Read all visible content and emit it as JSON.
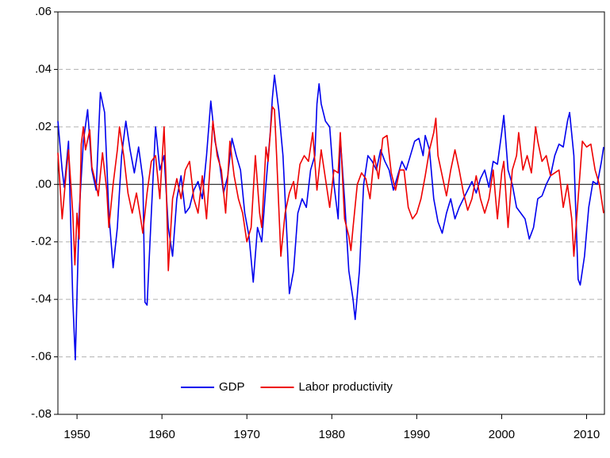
{
  "chart_data": {
    "type": "line",
    "xlim": [
      1947.75,
      2012.1
    ],
    "xticks": [
      1950,
      1960,
      1970,
      1980,
      1990,
      2000,
      2010
    ],
    "ylim": [
      -0.08,
      0.06
    ],
    "yticks": [
      {
        "value": -0.08,
        "label": "-.08"
      },
      {
        "value": -0.06,
        "label": "-.06"
      },
      {
        "value": -0.04,
        "label": "-.04"
      },
      {
        "value": -0.02,
        "label": "-.02"
      },
      {
        "value": 0,
        "label": ".00"
      },
      {
        "value": 0.02,
        "label": ".02"
      },
      {
        "value": 0.04,
        "label": ".04"
      },
      {
        "value": 0.06,
        "label": ".06"
      }
    ],
    "grid": true,
    "legend": "bottom",
    "series": [
      {
        "name": "GDP",
        "color": "#0000ee",
        "x": [
          1947.75,
          1948.25,
          1948.5,
          1949.0,
          1949.5,
          1949.8,
          1950.25,
          1950.75,
          1951.25,
          1951.75,
          1952.25,
          1952.75,
          1953.25,
          1953.75,
          1954.25,
          1954.75,
          1955.25,
          1955.75,
          1956.25,
          1956.75,
          1957.25,
          1957.75,
          1958.0,
          1958.25,
          1958.75,
          1959.25,
          1959.75,
          1960.25,
          1960.75,
          1961.25,
          1961.75,
          1962.25,
          1962.75,
          1963.25,
          1963.75,
          1964.25,
          1964.75,
          1965.25,
          1965.75,
          1966.25,
          1966.75,
          1967.25,
          1967.75,
          1968.25,
          1968.75,
          1969.25,
          1969.75,
          1970.25,
          1970.75,
          1971.25,
          1971.75,
          1972.25,
          1972.75,
          1973.0,
          1973.25,
          1973.75,
          1974.25,
          1974.75,
          1975.0,
          1975.5,
          1976.0,
          1976.5,
          1977.0,
          1977.5,
          1978.0,
          1978.25,
          1978.5,
          1978.75,
          1979.25,
          1979.75,
          1980.25,
          1980.75,
          1981.0,
          1981.5,
          1982.0,
          1982.5,
          1982.75,
          1983.25,
          1983.75,
          1984.25,
          1984.75,
          1985.25,
          1985.75,
          1986.25,
          1986.75,
          1987.25,
          1987.75,
          1988.25,
          1988.75,
          1989.25,
          1989.75,
          1990.25,
          1990.75,
          1991.0,
          1991.5,
          1992.0,
          1992.5,
          1993.0,
          1993.5,
          1994.0,
          1994.5,
          1995.0,
          1995.5,
          1996.0,
          1996.5,
          1997.0,
          1997.5,
          1998.0,
          1998.5,
          1999.0,
          1999.5,
          2000.0,
          2000.25,
          2000.75,
          2001.25,
          2001.75,
          2002.25,
          2002.75,
          2003.25,
          2003.75,
          2004.25,
          2004.75,
          2005.25,
          2005.75,
          2006.25,
          2006.75,
          2007.25,
          2007.75,
          2008.0,
          2008.5,
          2009.0,
          2009.25,
          2009.75,
          2010.25,
          2010.75,
          2011.25,
          2011.75,
          2012.0
        ],
        "values": [
          0.022,
          0.005,
          -0.001,
          0.015,
          -0.04,
          -0.061,
          -0.01,
          0.015,
          0.026,
          0.005,
          -0.002,
          0.032,
          0.025,
          -0.01,
          -0.029,
          -0.015,
          0.01,
          0.022,
          0.012,
          0.004,
          0.013,
          0.002,
          -0.041,
          -0.042,
          -0.01,
          0.02,
          0.005,
          0.01,
          -0.015,
          -0.025,
          -0.005,
          0.003,
          -0.01,
          -0.008,
          -0.002,
          0.001,
          -0.005,
          0.01,
          0.029,
          0.015,
          0.008,
          -0.003,
          0.003,
          0.016,
          0.01,
          0.005,
          -0.01,
          -0.018,
          -0.034,
          -0.015,
          -0.02,
          0.0,
          0.018,
          0.03,
          0.038,
          0.026,
          0.01,
          -0.02,
          -0.038,
          -0.03,
          -0.01,
          -0.005,
          -0.008,
          0.005,
          0.01,
          0.028,
          0.035,
          0.028,
          0.022,
          0.02,
          0.0,
          -0.012,
          0.016,
          -0.005,
          -0.03,
          -0.04,
          -0.047,
          -0.03,
          0.0,
          0.01,
          0.008,
          0.005,
          0.012,
          0.008,
          0.005,
          -0.002,
          0.003,
          0.008,
          0.005,
          0.01,
          0.015,
          0.016,
          0.01,
          0.017,
          0.012,
          -0.005,
          -0.013,
          -0.017,
          -0.01,
          -0.005,
          -0.012,
          -0.008,
          -0.005,
          -0.002,
          0.001,
          -0.003,
          0.002,
          0.005,
          -0.001,
          0.008,
          0.007,
          0.018,
          0.024,
          0.005,
          0.0,
          -0.008,
          -0.01,
          -0.012,
          -0.019,
          -0.015,
          -0.005,
          -0.004,
          0.0,
          0.003,
          0.01,
          0.014,
          0.013,
          0.022,
          0.025,
          0.01,
          -0.033,
          -0.035,
          -0.025,
          -0.008,
          0.001,
          0.0,
          0.008,
          0.013
        ]
      },
      {
        "name": "Labor productivity",
        "color": "#ee0000",
        "x": [
          1947.75,
          1948.25,
          1948.75,
          1949.0,
          1949.5,
          1949.75,
          1950.0,
          1950.25,
          1950.5,
          1950.75,
          1951.0,
          1951.5,
          1951.75,
          1952.25,
          1952.5,
          1953.0,
          1953.5,
          1953.75,
          1954.25,
          1954.75,
          1955.0,
          1955.5,
          1956.0,
          1956.5,
          1957.0,
          1957.5,
          1957.75,
          1958.25,
          1958.75,
          1959.25,
          1959.75,
          1960.25,
          1960.5,
          1960.75,
          1961.25,
          1961.75,
          1962.25,
          1962.75,
          1963.25,
          1963.75,
          1964.25,
          1964.75,
          1965.25,
          1965.75,
          1966.0,
          1966.5,
          1967.0,
          1967.5,
          1968.0,
          1968.5,
          1969.0,
          1969.5,
          1970.0,
          1970.5,
          1971.0,
          1971.5,
          1971.75,
          1972.25,
          1972.5,
          1973.0,
          1973.25,
          1973.5,
          1974.0,
          1974.5,
          1975.0,
          1975.5,
          1975.75,
          1976.25,
          1976.75,
          1977.25,
          1977.75,
          1978.25,
          1978.75,
          1979.25,
          1979.75,
          1980.25,
          1980.75,
          1981.0,
          1981.5,
          1982.0,
          1982.25,
          1982.5,
          1983.0,
          1983.5,
          1984.0,
          1984.5,
          1985.0,
          1985.5,
          1986.0,
          1986.5,
          1987.0,
          1987.5,
          1988.0,
          1988.5,
          1989.0,
          1989.5,
          1990.0,
          1990.5,
          1991.0,
          1991.5,
          1992.0,
          1992.25,
          1992.5,
          1993.0,
          1993.5,
          1994.0,
          1994.5,
          1995.0,
          1995.5,
          1996.0,
          1996.5,
          1997.0,
          1997.5,
          1998.0,
          1998.5,
          1999.0,
          1999.5,
          2000.0,
          2000.25,
          2000.75,
          2001.25,
          2001.75,
          2002.0,
          2002.5,
          2003.0,
          2003.5,
          2004.0,
          2004.25,
          2004.75,
          2005.25,
          2005.75,
          2006.25,
          2006.75,
          2007.25,
          2007.75,
          2008.25,
          2008.5,
          2009.0,
          2009.5,
          2010.0,
          2010.5,
          2011.0,
          2011.5,
          2012.0
        ],
        "values": [
          0.011,
          -0.012,
          0.005,
          0.012,
          -0.01,
          -0.028,
          -0.01,
          -0.019,
          0.014,
          0.02,
          0.012,
          0.019,
          0.006,
          0.0,
          -0.004,
          0.011,
          -0.002,
          -0.015,
          0.0,
          0.012,
          0.02,
          0.01,
          -0.003,
          -0.01,
          -0.003,
          -0.012,
          -0.017,
          -0.003,
          0.008,
          0.01,
          -0.005,
          0.02,
          0.0,
          -0.03,
          -0.005,
          0.002,
          -0.005,
          0.005,
          0.008,
          -0.005,
          -0.01,
          0.003,
          -0.012,
          0.01,
          0.022,
          0.01,
          0.005,
          -0.01,
          0.015,
          0.003,
          -0.005,
          -0.01,
          -0.02,
          -0.015,
          0.01,
          -0.01,
          -0.015,
          0.013,
          0.008,
          0.027,
          0.026,
          0.01,
          -0.025,
          -0.01,
          -0.003,
          0.001,
          -0.005,
          0.007,
          0.01,
          0.008,
          0.018,
          -0.002,
          0.012,
          0.002,
          -0.008,
          0.005,
          0.004,
          0.018,
          -0.012,
          -0.018,
          -0.023,
          -0.015,
          0.0,
          0.004,
          0.002,
          -0.005,
          0.01,
          0.002,
          0.016,
          0.017,
          0.004,
          -0.002,
          0.005,
          0.005,
          -0.008,
          -0.012,
          -0.01,
          -0.005,
          0.003,
          0.012,
          0.018,
          0.023,
          0.01,
          0.003,
          -0.004,
          0.005,
          0.012,
          0.005,
          -0.003,
          -0.009,
          -0.005,
          0.003,
          -0.005,
          -0.01,
          -0.005,
          0.005,
          -0.012,
          0.004,
          0.008,
          -0.015,
          0.005,
          0.01,
          0.018,
          0.005,
          0.01,
          0.004,
          0.02,
          0.015,
          0.008,
          0.01,
          0.003,
          0.004,
          0.005,
          -0.008,
          0.0,
          -0.012,
          -0.025,
          -0.005,
          0.015,
          0.013,
          0.014,
          0.005,
          0.0,
          -0.01
        ]
      }
    ]
  }
}
